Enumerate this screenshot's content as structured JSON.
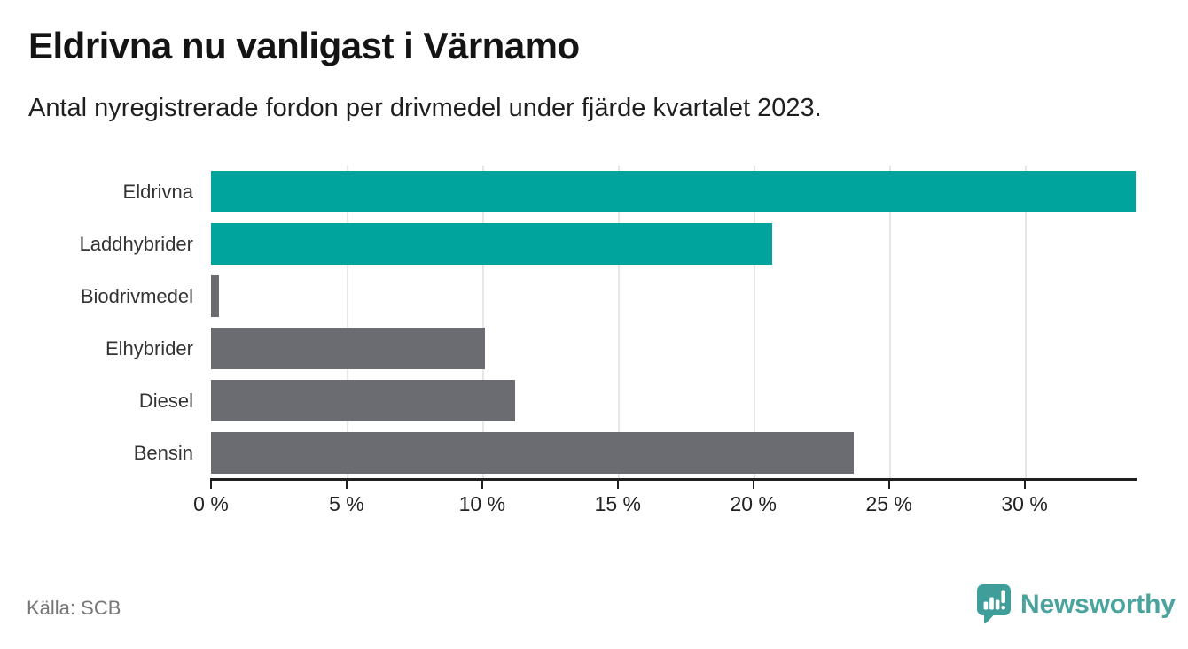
{
  "header": {
    "title": "Eldrivna nu vanligast i Värnamo",
    "subtitle": "Antal nyregistrerade fordon per drivmedel under fjärde kvartalet 2023."
  },
  "footer": {
    "source": "Källa: SCB",
    "brand": {
      "name": "Newsworthy",
      "icon": "newsworthy-speech-bubble-chart-icon",
      "text_color": "#4aa39d",
      "icon_color": "#3f9e99"
    }
  },
  "colors": {
    "bar_teal": "#00a49c",
    "bar_gray": "#6b6b72",
    "gridline": "#e7e7e7",
    "axis": "#1f1f1f"
  },
  "chart_data": {
    "type": "bar",
    "orientation": "horizontal",
    "title": "Eldrivna nu vanligast i Värnamo",
    "subtitle": "Antal nyregistrerade fordon per drivmedel under fjärde kvartalet 2023.",
    "categories": [
      "Eldrivna",
      "Laddhybrider",
      "Biodrivmedel",
      "Elhybrider",
      "Diesel",
      "Bensin"
    ],
    "values": [
      34.1,
      20.7,
      0.3,
      10.1,
      11.2,
      23.7
    ],
    "bar_colors": [
      "#00a49c",
      "#00a49c",
      "#6b6b72",
      "#6b6b72",
      "#6b6b72",
      "#6b6b72"
    ],
    "unit": "%",
    "xlim": [
      0,
      34.1
    ],
    "xticks": [
      0,
      5,
      10,
      15,
      20,
      25,
      30
    ],
    "xtick_labels": [
      "0 %",
      "5 %",
      "10 %",
      "15 %",
      "20 %",
      "25 %",
      "30 %"
    ],
    "grid": "vertical-gridlines-at-xticks",
    "legend": "none"
  }
}
